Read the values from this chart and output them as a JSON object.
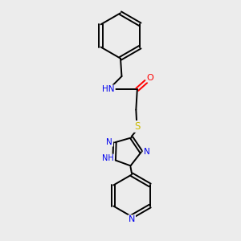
{
  "background_color": "#ececec",
  "bond_color": "#000000",
  "atom_colors": {
    "N": "#0000ee",
    "O": "#ff0000",
    "S": "#ccbb00",
    "C": "#000000"
  },
  "figsize": [
    3.0,
    3.0
  ],
  "dpi": 100
}
